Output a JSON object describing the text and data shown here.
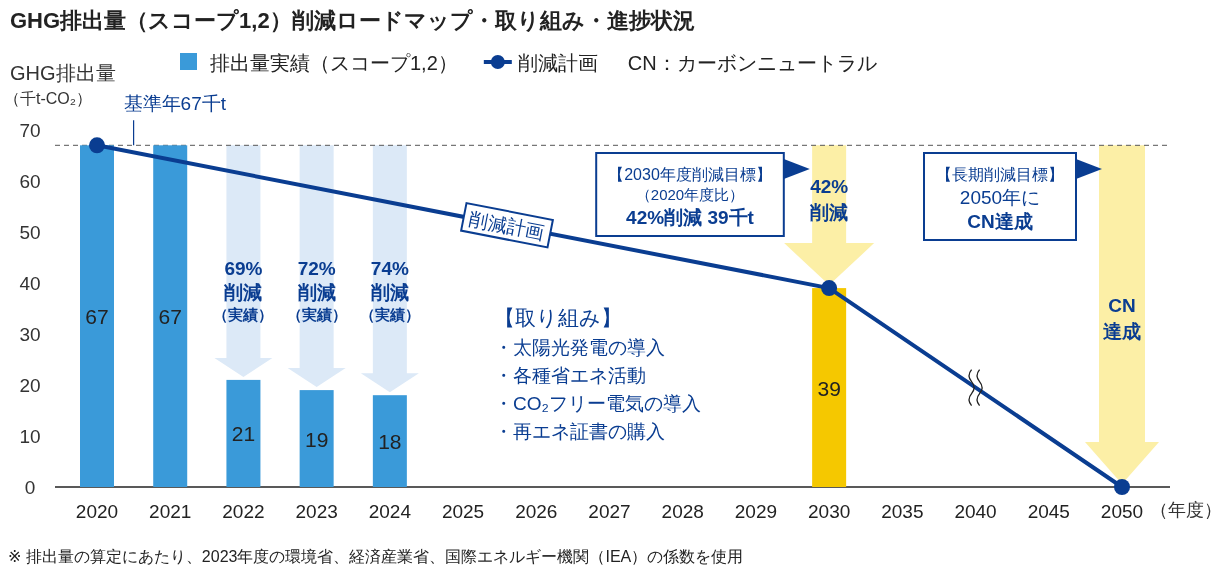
{
  "chart_data": {
    "type": "bar",
    "title": "GHG排出量（スコープ1,2）削減ロードマップ・取り組み・進捗状況",
    "ylabel": "GHG排出量",
    "xlabel": "（年度）",
    "categories": [
      "2020",
      "2021",
      "2022",
      "2023",
      "2024",
      "2025",
      "2026",
      "2027",
      "2028",
      "2029",
      "2030",
      "2035",
      "2040",
      "2045",
      "2050"
    ],
    "series": [
      {
        "name": "排出量実績（スコープ1,2）",
        "color": "#3a9ad9",
        "colors": [
          "#3a9ad9",
          "#3a9ad9",
          "#3a9ad9",
          "#3a9ad9",
          "#3a9ad9",
          null,
          null,
          null,
          null,
          null,
          "#f5c800",
          null,
          null,
          null,
          null
        ],
        "values": [
          67,
          67,
          21,
          19,
          18,
          null,
          null,
          null,
          null,
          null,
          39,
          null,
          null,
          null,
          null
        ],
        "value_labels": [
          "67",
          "67",
          "21",
          "19",
          "18",
          null,
          null,
          null,
          null,
          null,
          "39",
          null,
          null,
          null,
          null
        ]
      },
      {
        "name": "削減計画",
        "type": "line",
        "color": "#0a3d91",
        "marker": "circle",
        "line_style": "solid",
        "values": [
          67,
          null,
          null,
          null,
          null,
          null,
          null,
          null,
          null,
          null,
          39,
          null,
          null,
          null,
          0
        ]
      }
    ],
    "ylim": [
      0,
      70
    ],
    "yticks": [
      0,
      10,
      20,
      30,
      40,
      50,
      60,
      70
    ],
    "grid": false,
    "legend": "top",
    "ref_lines": [
      {
        "axis": "y",
        "value": 67,
        "label": "基準年67千t",
        "color": "#555555",
        "line_style": "dashed"
      }
    ],
    "annotations": [
      "69%",
      "削減",
      "（実績）",
      "72%",
      "削減",
      "（実績）",
      "74%",
      "削減",
      "（実績）",
      "42%",
      "削減",
      "CN",
      "達成",
      "【2030年度削減目標】",
      "（2020年度比）",
      "42%削減 39千t",
      "【長期削減目標】",
      "2050年に",
      "CN達成",
      "【取り組み】",
      "・太陽光発電の導入",
      "・各種省エネ活動",
      "・CO₂フリー電気の導入",
      "・再エネ証書の購入",
      "CN：カーボンニュートラル",
      "（千t-CO₂）",
      "※ 排出量の算定にあたり、2023年度の環境省、経済産業省、国際エネルギー機関（IEA）の係数を使用"
    ]
  }
}
